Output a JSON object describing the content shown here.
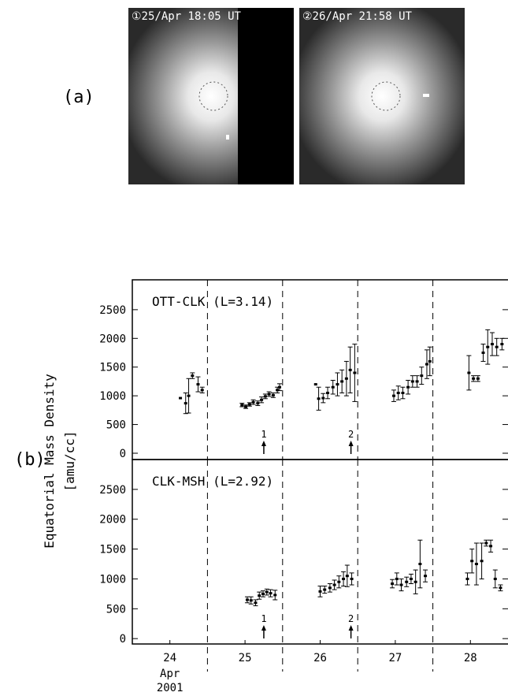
{
  "panel_a": {
    "label": "(a)",
    "images": [
      {
        "caption": "①25/Apr 18:05 UT"
      },
      {
        "caption": "②26/Apr 21:58 UT"
      }
    ]
  },
  "panel_b_label": "(b)",
  "y_label": "Equatorial Mass Density",
  "y_unit": "[amu/cc]",
  "chart_data": [
    {
      "type": "errorbar",
      "title": "OTT-CLK (L=3.14)",
      "color": "#000000",
      "x": [
        24.64,
        24.71,
        24.75,
        24.8,
        24.875,
        24.93,
        25.46,
        25.51,
        25.56,
        25.61,
        25.67,
        25.72,
        25.77,
        25.82,
        25.875,
        25.93,
        25.96,
        26.44,
        26.48,
        26.54,
        26.6,
        26.67,
        26.73,
        26.79,
        26.85,
        26.9,
        26.96,
        27.48,
        27.54,
        27.6,
        27.67,
        27.73,
        27.79,
        27.85,
        27.92,
        27.96,
        28.48,
        28.54,
        28.6,
        28.67,
        28.73,
        28.79,
        28.85,
        28.92
      ],
      "values": [
        960,
        870,
        1000,
        1350,
        1200,
        1100,
        840,
        810,
        850,
        890,
        870,
        930,
        990,
        1030,
        1010,
        1100,
        1150,
        1200,
        950,
        960,
        1050,
        1150,
        1200,
        1250,
        1300,
        1450,
        1400,
        1000,
        1050,
        1050,
        1150,
        1250,
        1250,
        1350,
        1550,
        1600,
        1400,
        1300,
        1300,
        1750,
        1850,
        1900,
        1850,
        1900
      ],
      "errors": [
        0,
        180,
        300,
        50,
        130,
        50,
        30,
        30,
        30,
        40,
        40,
        50,
        40,
        40,
        40,
        50,
        60,
        0,
        200,
        80,
        100,
        120,
        200,
        200,
        300,
        400,
        500,
        100,
        120,
        100,
        120,
        100,
        100,
        150,
        250,
        250,
        300,
        50,
        50,
        150,
        300,
        200,
        150,
        100
      ],
      "xlim": [
        24,
        29
      ],
      "ylim": [
        -110,
        3020
      ],
      "yticks": [
        0,
        500,
        1000,
        1500,
        2000,
        2500
      ],
      "vlines": [
        25,
        26,
        27,
        28
      ],
      "annotations": [
        {
          "text": "1",
          "x": 25.75
        },
        {
          "text": "2",
          "x": 26.91
        }
      ]
    },
    {
      "type": "errorbar",
      "title": "CLK-MSH (L=2.92)",
      "color": "#000000",
      "x": [
        25.53,
        25.58,
        25.64,
        25.69,
        25.74,
        25.79,
        25.84,
        25.9,
        26.5,
        26.56,
        26.63,
        26.69,
        26.75,
        26.81,
        26.86,
        26.92,
        27.46,
        27.52,
        27.58,
        27.65,
        27.71,
        27.77,
        27.83,
        27.9,
        28.46,
        28.52,
        28.58,
        28.65,
        28.71,
        28.77,
        28.83,
        28.9
      ],
      "values": [
        650,
        640,
        600,
        720,
        750,
        780,
        760,
        730,
        790,
        820,
        850,
        900,
        950,
        1000,
        1050,
        1000,
        920,
        1000,
        900,
        950,
        1000,
        950,
        1250,
        1050,
        1000,
        1300,
        1250,
        1300,
        1600,
        1550,
        1000,
        850
      ],
      "errors": [
        50,
        60,
        50,
        60,
        50,
        50,
        60,
        80,
        90,
        60,
        70,
        80,
        100,
        120,
        180,
        100,
        70,
        100,
        100,
        80,
        80,
        200,
        400,
        100,
        100,
        200,
        350,
        300,
        50,
        100,
        150,
        50
      ],
      "xlim": [
        24,
        29
      ],
      "ylim": [
        -90,
        3000
      ],
      "yticks": [
        0,
        500,
        1000,
        1500,
        2000,
        2500
      ],
      "xticks": [
        {
          "value": 24.5,
          "label": "24"
        },
        {
          "value": 25.5,
          "label": "25"
        },
        {
          "value": 26.5,
          "label": "26"
        },
        {
          "value": 27.5,
          "label": "27"
        },
        {
          "value": 28.5,
          "label": "28"
        }
      ],
      "x_label_lines": [
        "Apr",
        "2001"
      ],
      "vlines": [
        25,
        26,
        27,
        28
      ],
      "annotations": [
        {
          "text": "1",
          "x": 25.75
        },
        {
          "text": "2",
          "x": 26.91
        }
      ]
    }
  ]
}
